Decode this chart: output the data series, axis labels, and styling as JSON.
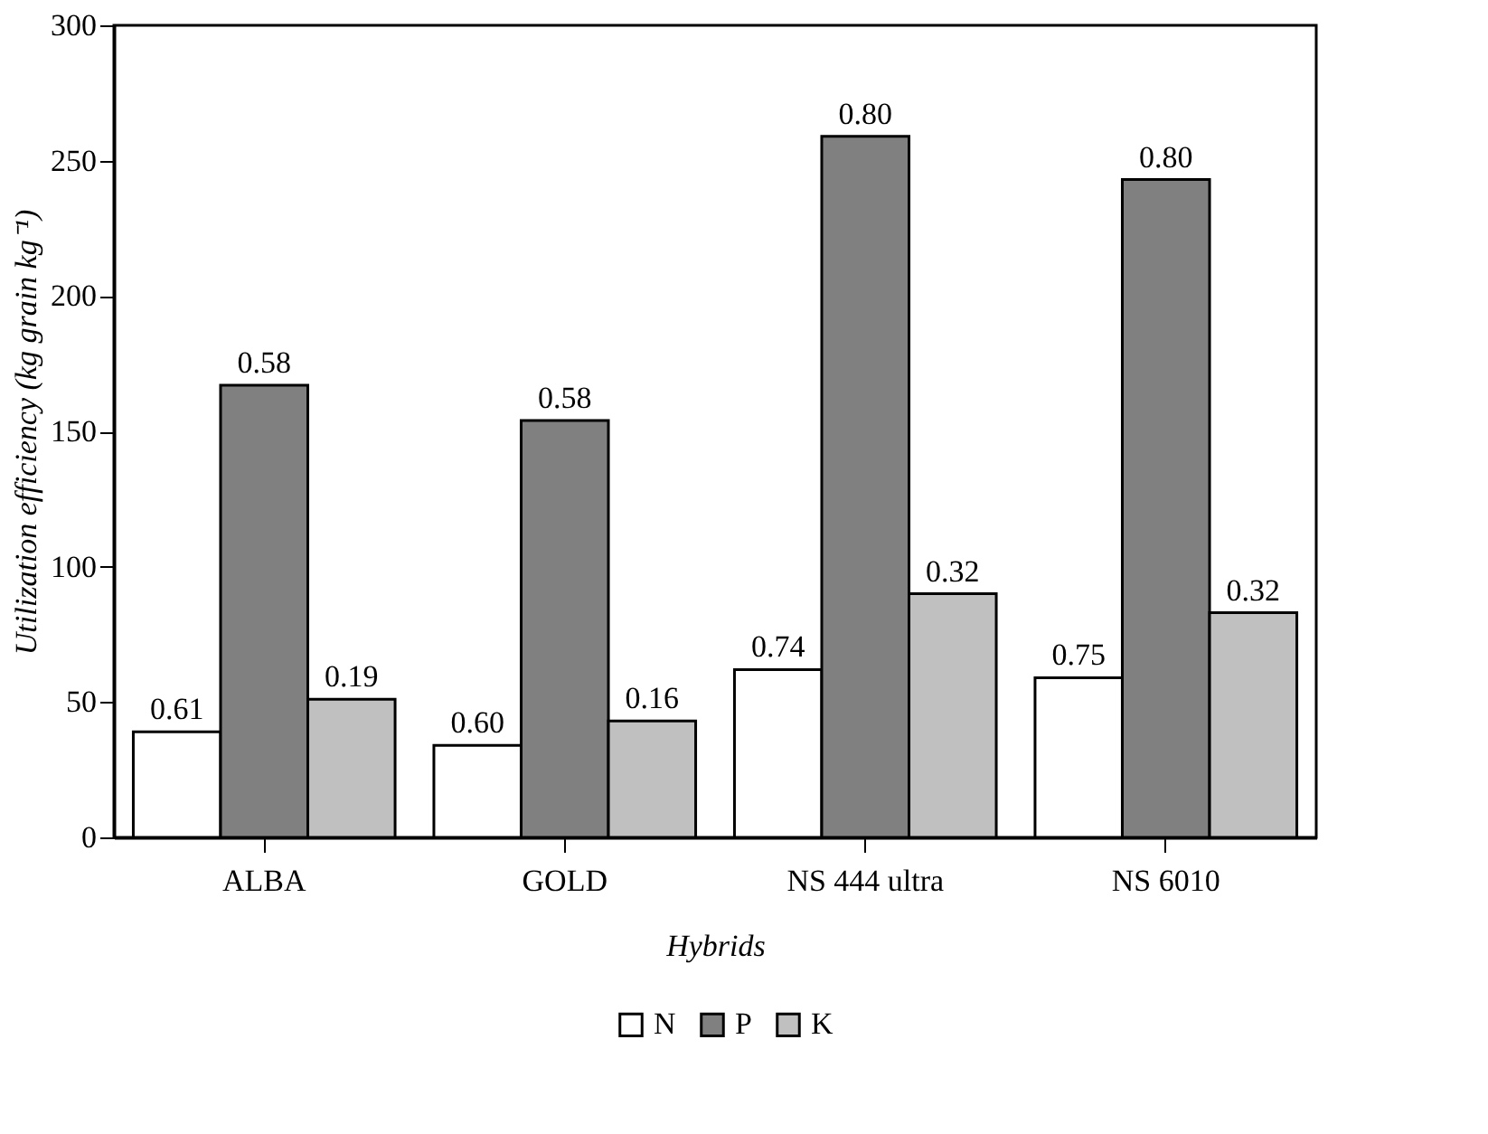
{
  "chart_data": {
    "type": "bar",
    "xlabel": "Hybrids",
    "ylabel": "Utilization efficiency (kg grain kg⁻¹)",
    "categories": [
      "ALBA",
      "GOLD",
      "NS 444 ultra",
      "NS 6010"
    ],
    "series": [
      {
        "name": "N",
        "color": "#ffffff",
        "values": [
          39,
          34,
          62,
          59
        ]
      },
      {
        "name": "P",
        "color": "#808080",
        "values": [
          167,
          154,
          259,
          243
        ]
      },
      {
        "name": "K",
        "color": "#c0c0c0",
        "values": [
          51,
          43,
          90,
          83
        ]
      }
    ],
    "annotations": [
      "0.61",
      "0.58",
      "0.19",
      "0.60",
      "0.58",
      "0.16",
      "0.74",
      "0.80",
      "0.32",
      "0.75",
      "0.80",
      "0.32"
    ],
    "ylim": [
      0,
      300
    ],
    "yticks": [
      0,
      50,
      100,
      150,
      200,
      250,
      300
    ],
    "grid": false,
    "legend": "bottom"
  }
}
